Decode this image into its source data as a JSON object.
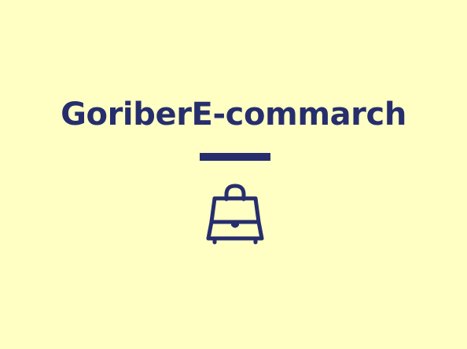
{
  "brand": {
    "title": "GoriberE-commarch",
    "icon": "shopping-bag-icon"
  },
  "colors": {
    "background": "#FFFFC4",
    "brand": "#262E6D"
  }
}
